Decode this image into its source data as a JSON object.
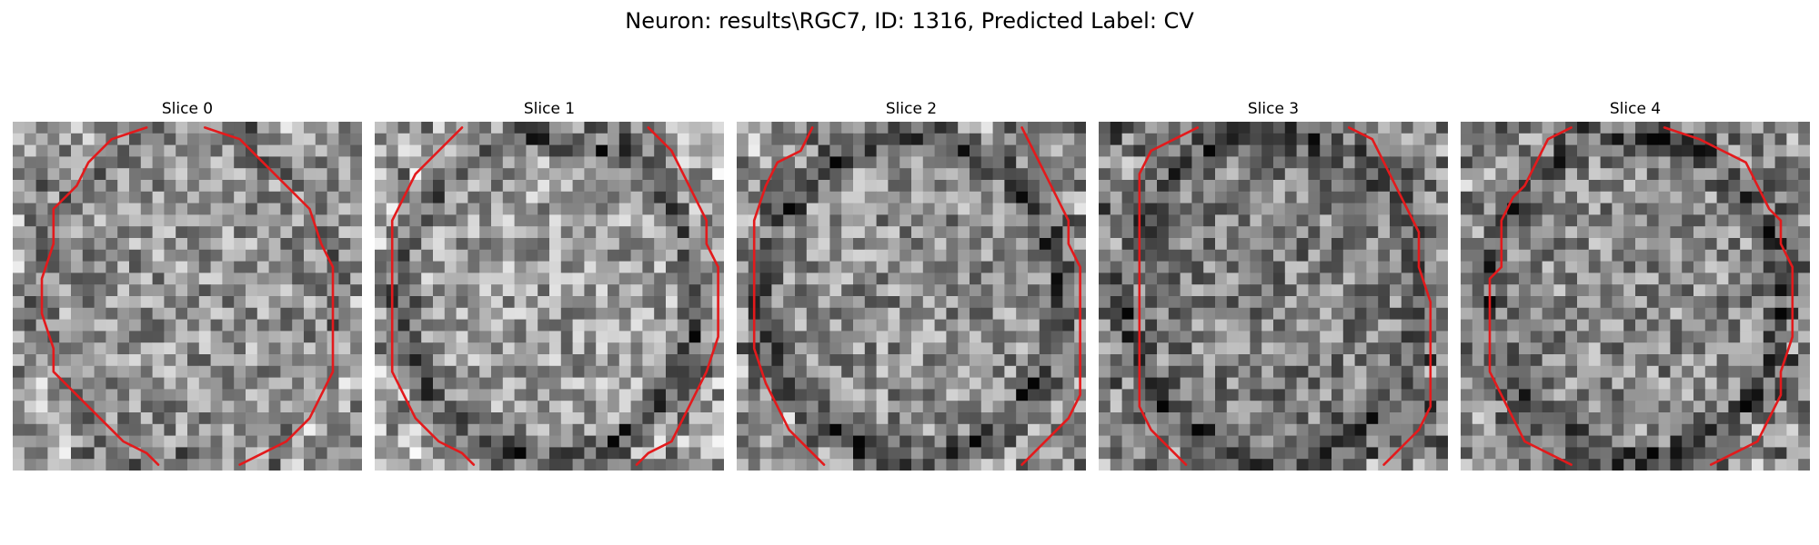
{
  "figure": {
    "title": "Neuron: results\\RGC7, ID: 1316, Predicted Label: CV",
    "contour_color": "#e31a1c",
    "colormap": "gray",
    "grid_cells": 30
  },
  "slices": [
    {
      "label": "Slice 0",
      "brightness": 0.58,
      "ring_darkness": 0.1,
      "contour_left": [
        [
          11,
          0
        ],
        [
          8,
          1
        ],
        [
          6,
          3
        ],
        [
          5,
          5
        ],
        [
          3,
          7
        ],
        [
          3,
          10
        ],
        [
          2,
          13
        ],
        [
          2,
          16
        ],
        [
          3,
          19
        ],
        [
          3,
          21
        ],
        [
          5,
          23
        ],
        [
          7,
          25
        ],
        [
          9,
          27
        ],
        [
          11,
          28
        ],
        [
          12,
          29
        ]
      ],
      "contour_right": [
        [
          16,
          0
        ],
        [
          19,
          1
        ],
        [
          21,
          3
        ],
        [
          23,
          5
        ],
        [
          25,
          7
        ],
        [
          26,
          10
        ],
        [
          27,
          12
        ],
        [
          27,
          15
        ],
        [
          27,
          18
        ],
        [
          27,
          21
        ],
        [
          26,
          23
        ],
        [
          25,
          25
        ],
        [
          23,
          27
        ],
        [
          21,
          28
        ],
        [
          19,
          29
        ]
      ]
    },
    {
      "label": "Slice 1",
      "brightness": 0.62,
      "ring_darkness": 0.32,
      "contour_left": [
        [
          7,
          0
        ],
        [
          5,
          2
        ],
        [
          3,
          4
        ],
        [
          2,
          6
        ],
        [
          1,
          8
        ],
        [
          1,
          11
        ],
        [
          1,
          15
        ],
        [
          1,
          18
        ],
        [
          1,
          21
        ],
        [
          2,
          23
        ],
        [
          3,
          25
        ],
        [
          5,
          27
        ],
        [
          7,
          28
        ],
        [
          8,
          29
        ]
      ],
      "contour_right": [
        [
          23,
          0
        ],
        [
          25,
          2
        ],
        [
          26,
          4
        ],
        [
          27,
          6
        ],
        [
          28,
          8
        ],
        [
          28,
          10
        ],
        [
          29,
          12
        ],
        [
          29,
          15
        ],
        [
          29,
          18
        ],
        [
          28,
          21
        ],
        [
          27,
          23
        ],
        [
          26,
          25
        ],
        [
          25,
          27
        ],
        [
          23,
          28
        ],
        [
          22,
          29
        ]
      ]
    },
    {
      "label": "Slice 2",
      "brightness": 0.56,
      "ring_darkness": 0.3,
      "contour_left": [
        [
          6,
          0
        ],
        [
          5,
          2
        ],
        [
          3,
          3
        ],
        [
          2,
          5
        ],
        [
          1,
          8
        ],
        [
          1,
          11
        ],
        [
          1,
          15
        ],
        [
          1,
          19
        ],
        [
          2,
          22
        ],
        [
          3,
          24
        ],
        [
          4,
          26
        ],
        [
          6,
          28
        ],
        [
          7,
          29
        ]
      ],
      "contour_right": [
        [
          24,
          0
        ],
        [
          25,
          2
        ],
        [
          26,
          4
        ],
        [
          27,
          6
        ],
        [
          28,
          8
        ],
        [
          28,
          10
        ],
        [
          29,
          12
        ],
        [
          29,
          14
        ],
        [
          29,
          16
        ],
        [
          29,
          19
        ],
        [
          29,
          21
        ],
        [
          29,
          23
        ],
        [
          28,
          25
        ],
        [
          27,
          26
        ],
        [
          25,
          28
        ],
        [
          24,
          29
        ]
      ]
    },
    {
      "label": "Slice 3",
      "brightness": 0.5,
      "ring_darkness": 0.2,
      "contour_left": [
        [
          8,
          0
        ],
        [
          6,
          1
        ],
        [
          4,
          2
        ],
        [
          3,
          4
        ],
        [
          3,
          7
        ],
        [
          3,
          11
        ],
        [
          3,
          15
        ],
        [
          3,
          19
        ],
        [
          3,
          22
        ],
        [
          3,
          24
        ],
        [
          4,
          26
        ],
        [
          5,
          27
        ],
        [
          6,
          28
        ],
        [
          7,
          29
        ]
      ],
      "contour_right": [
        [
          21,
          0
        ],
        [
          23,
          1
        ],
        [
          24,
          3
        ],
        [
          25,
          5
        ],
        [
          26,
          7
        ],
        [
          27,
          9
        ],
        [
          27,
          12
        ],
        [
          28,
          15
        ],
        [
          28,
          18
        ],
        [
          28,
          21
        ],
        [
          28,
          24
        ],
        [
          27,
          26
        ],
        [
          26,
          27
        ],
        [
          25,
          28
        ],
        [
          24,
          29
        ]
      ]
    },
    {
      "label": "Slice 4",
      "brightness": 0.54,
      "ring_darkness": 0.24,
      "contour_left": [
        [
          9,
          0
        ],
        [
          7,
          1
        ],
        [
          6,
          3
        ],
        [
          5,
          5
        ],
        [
          4,
          6
        ],
        [
          3,
          8
        ],
        [
          3,
          11
        ],
        [
          3,
          12
        ],
        [
          2,
          13
        ],
        [
          2,
          15
        ],
        [
          2,
          18
        ],
        [
          2,
          21
        ],
        [
          3,
          23
        ],
        [
          4,
          25
        ],
        [
          5,
          27
        ],
        [
          7,
          28
        ],
        [
          9,
          29
        ]
      ],
      "contour_right": [
        [
          17,
          0
        ],
        [
          20,
          1
        ],
        [
          22,
          2
        ],
        [
          24,
          3
        ],
        [
          25,
          5
        ],
        [
          26,
          7
        ],
        [
          27,
          8
        ],
        [
          27,
          10
        ],
        [
          28,
          12
        ],
        [
          28,
          15
        ],
        [
          28,
          18
        ],
        [
          27,
          21
        ],
        [
          27,
          23
        ],
        [
          26,
          25
        ],
        [
          25,
          27
        ],
        [
          23,
          28
        ],
        [
          21,
          29
        ]
      ]
    }
  ]
}
